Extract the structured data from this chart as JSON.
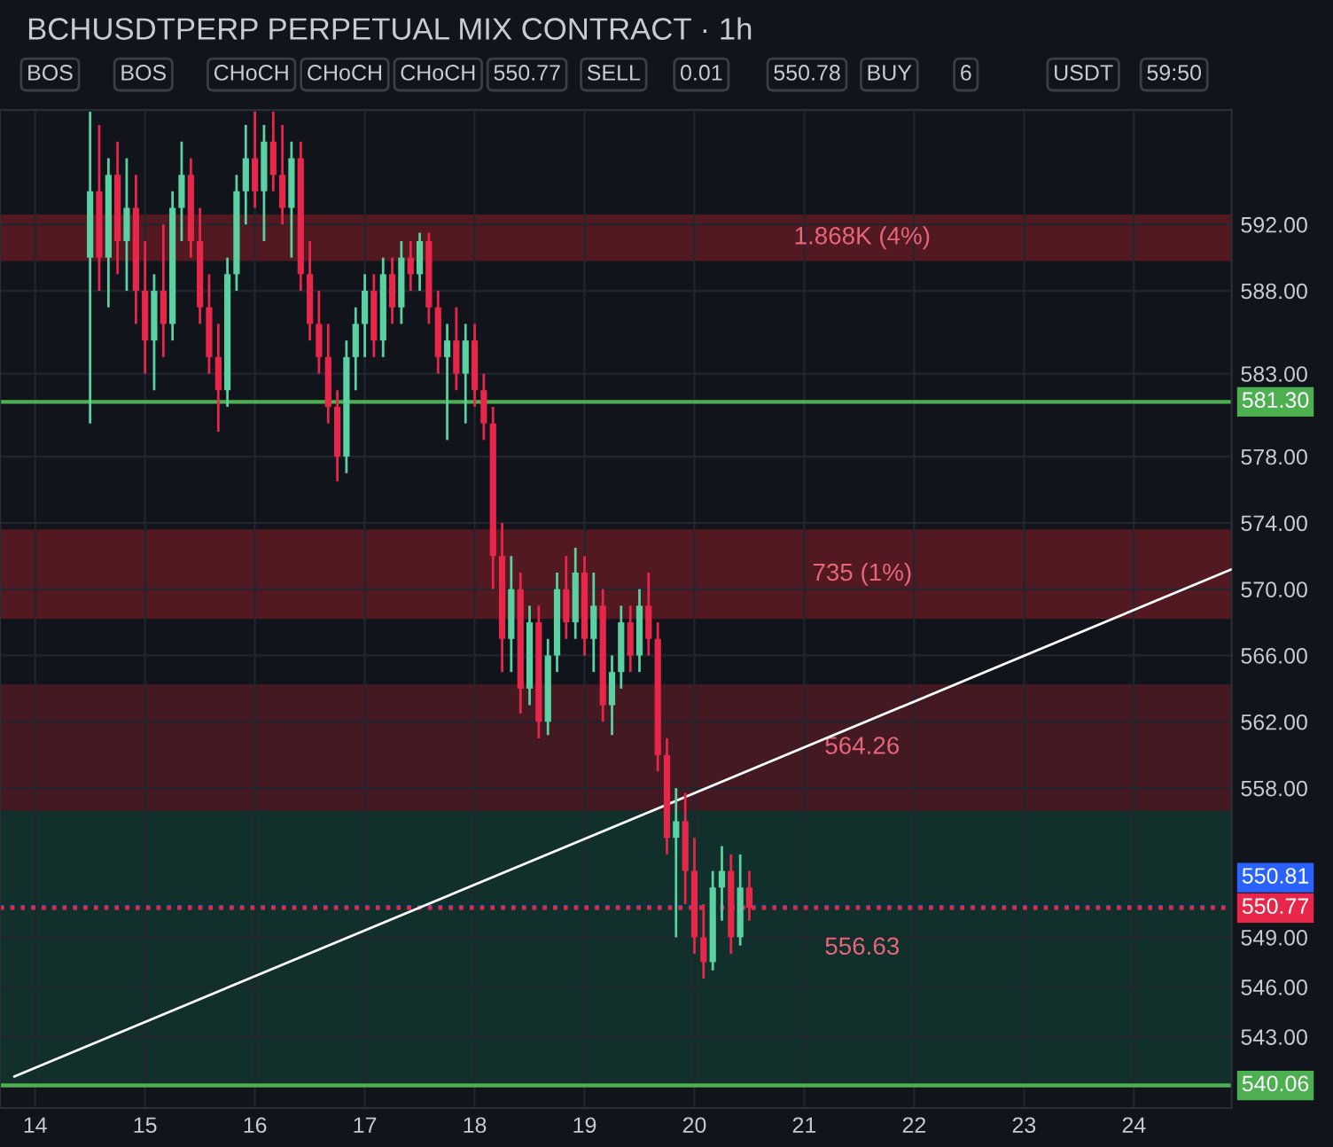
{
  "chart_data": {
    "type": "candlestick",
    "title": "BCHUSDTPERP PERPETUAL MIX CONTRACT · 1h",
    "x": [
      14.5,
      14.583,
      14.667,
      14.75,
      14.833,
      14.917,
      15.0,
      15.083,
      15.167,
      15.25,
      15.333,
      15.417,
      15.5,
      15.583,
      15.667,
      15.75,
      15.833,
      15.917,
      16.0,
      16.083,
      16.167,
      16.25,
      16.333,
      16.417,
      16.5,
      16.583,
      16.667,
      16.75,
      16.833,
      16.917,
      17.0,
      17.083,
      17.167,
      17.25,
      17.333,
      17.417,
      17.5,
      17.583,
      17.667,
      17.75,
      17.833,
      17.917,
      18.0,
      18.083,
      18.167,
      18.25,
      18.333,
      18.417,
      18.5,
      18.583,
      18.667,
      18.75,
      18.833,
      18.917,
      19.0,
      19.083,
      19.167,
      19.25,
      19.333,
      19.417,
      19.5,
      19.583,
      19.667,
      19.75,
      19.833,
      19.917,
      20.0,
      20.083,
      20.167,
      20.25,
      20.333,
      20.417,
      20.5
    ],
    "ohlc": [
      [
        590,
        598.8,
        580,
        594
      ],
      [
        594,
        598,
        588,
        590
      ],
      [
        590,
        596,
        587,
        595
      ],
      [
        595,
        597,
        589,
        591
      ],
      [
        591,
        596,
        588,
        593
      ],
      [
        593,
        595,
        586,
        588
      ],
      [
        588,
        591,
        583,
        585
      ],
      [
        585,
        589,
        582,
        588
      ],
      [
        588,
        592,
        584,
        586
      ],
      [
        586,
        594,
        585,
        593
      ],
      [
        593,
        597,
        591,
        595
      ],
      [
        595,
        596,
        590,
        591
      ],
      [
        591,
        593,
        586,
        587
      ],
      [
        587,
        589,
        583,
        584
      ],
      [
        584,
        586,
        579.5,
        582
      ],
      [
        582,
        590,
        581,
        589
      ],
      [
        589,
        595,
        588,
        594
      ],
      [
        594,
        598,
        592,
        596
      ],
      [
        596,
        598.8,
        593,
        594
      ],
      [
        594,
        598,
        591,
        597
      ],
      [
        597,
        598.8,
        594,
        595
      ],
      [
        595,
        598,
        592,
        593
      ],
      [
        593,
        597,
        590,
        596
      ],
      [
        596,
        597,
        588,
        589
      ],
      [
        589,
        591,
        585,
        586
      ],
      [
        586,
        588,
        583,
        584
      ],
      [
        584,
        586,
        580,
        581
      ],
      [
        581,
        582,
        576.5,
        578
      ],
      [
        578,
        585,
        577,
        584
      ],
      [
        584,
        587,
        582,
        586
      ],
      [
        586,
        589,
        584,
        588
      ],
      [
        588,
        589,
        584,
        585
      ],
      [
        585,
        590,
        584,
        589
      ],
      [
        589,
        590,
        586,
        587
      ],
      [
        587,
        591,
        586,
        590
      ],
      [
        590,
        591,
        588,
        589
      ],
      [
        589,
        591.5,
        588,
        591
      ],
      [
        591,
        591.5,
        586,
        587
      ],
      [
        587,
        588,
        583,
        584
      ],
      [
        584,
        586,
        579,
        585
      ],
      [
        585,
        587,
        582,
        583
      ],
      [
        583,
        586,
        580,
        585
      ],
      [
        585,
        586,
        581,
        582
      ],
      [
        582,
        583,
        579,
        580
      ],
      [
        580,
        581,
        570,
        572
      ],
      [
        572,
        574,
        565,
        567
      ],
      [
        567,
        572,
        565,
        570
      ],
      [
        570,
        571,
        562.5,
        564
      ],
      [
        564,
        569,
        563,
        568
      ],
      [
        568,
        569,
        561,
        562
      ],
      [
        562,
        567,
        561.2,
        566
      ],
      [
        566,
        571,
        565,
        570
      ],
      [
        570,
        572,
        567,
        568
      ],
      [
        568,
        572.5,
        567,
        571
      ],
      [
        571,
        572,
        566,
        567
      ],
      [
        567,
        571,
        565,
        569
      ],
      [
        569,
        570,
        562,
        563
      ],
      [
        563,
        566,
        561.2,
        565
      ],
      [
        565,
        569,
        564,
        568
      ],
      [
        568,
        569,
        565,
        566
      ],
      [
        566,
        570,
        565,
        569
      ],
      [
        569,
        571,
        566,
        567
      ],
      [
        567,
        568,
        559,
        560
      ],
      [
        560,
        561,
        554,
        555
      ],
      [
        555,
        558,
        549,
        556
      ],
      [
        556,
        557.7,
        551,
        553
      ],
      [
        553,
        555,
        548,
        549
      ],
      [
        549,
        551,
        546.5,
        547.5
      ],
      [
        547.5,
        553,
        547,
        552
      ],
      [
        552,
        554.5,
        550,
        553
      ],
      [
        553,
        554,
        548,
        549
      ],
      [
        549,
        554,
        548.5,
        552
      ],
      [
        552,
        553,
        550,
        550.77
      ]
    ],
    "colors": [
      "#5ad1a0",
      "#e8264a",
      "#5ad1a0",
      "#e8264a",
      "#5ad1a0",
      "#e8264a",
      "#e8264a",
      "#5ad1a0",
      "#e8264a",
      "#5ad1a0",
      "#5ad1a0",
      "#e8264a",
      "#e8264a",
      "#e8264a",
      "#e8264a",
      "#5ad1a0",
      "#5ad1a0",
      "#5ad1a0",
      "#e8264a",
      "#5ad1a0",
      "#e8264a",
      "#e8264a",
      "#5ad1a0",
      "#e8264a",
      "#e8264a",
      "#e8264a",
      "#e8264a",
      "#e8264a",
      "#5ad1a0",
      "#5ad1a0",
      "#5ad1a0",
      "#e8264a",
      "#5ad1a0",
      "#e8264a",
      "#5ad1a0",
      "#e8264a",
      "#5ad1a0",
      "#e8264a",
      "#e8264a",
      "#5ad1a0",
      "#e8264a",
      "#5ad1a0",
      "#e8264a",
      "#e8264a",
      "#e8264a",
      "#e8264a",
      "#5ad1a0",
      "#e8264a",
      "#5ad1a0",
      "#e8264a",
      "#5ad1a0",
      "#5ad1a0",
      "#e8264a",
      "#5ad1a0",
      "#e8264a",
      "#5ad1a0",
      "#e8264a",
      "#5ad1a0",
      "#5ad1a0",
      "#e8264a",
      "#5ad1a0",
      "#e8264a",
      "#e8264a",
      "#e8264a",
      "#5ad1a0",
      "#e8264a",
      "#e8264a",
      "#e8264a",
      "#5ad1a0",
      "#5ad1a0",
      "#e8264a",
      "#5ad1a0",
      "#e8264a"
    ],
    "series": [
      {
        "type": "line",
        "x": [
          13.81,
          24.89
        ],
        "values": [
          540.6,
          571.2
        ],
        "color": "#ffffff"
      }
    ],
    "xlim": [
      13.68,
      24.89
    ],
    "xticks": [
      14,
      15,
      16,
      17,
      18,
      19,
      20,
      21,
      22,
      23,
      24
    ],
    "ylim": [
      538.7,
      598.9
    ],
    "yticks": [
      {
        "value": 543,
        "label": "543.00"
      },
      {
        "value": 546,
        "label": "546.00"
      },
      {
        "value": 549,
        "label": "549.00"
      },
      {
        "value": 558,
        "label": "558.00"
      },
      {
        "value": 562,
        "label": "562.00"
      },
      {
        "value": 566,
        "label": "566.00"
      },
      {
        "value": 570,
        "label": "570.00"
      },
      {
        "value": 574,
        "label": "574.00"
      },
      {
        "value": 578,
        "label": "578.00"
      },
      {
        "value": 583,
        "label": "583.00"
      },
      {
        "value": 588,
        "label": "588.00"
      },
      {
        "value": 592,
        "label": "592.00"
      }
    ],
    "grid": true,
    "ref_lines": [
      {
        "axis": "y",
        "value": 581.3,
        "label": "581.30",
        "color": "#4caf50",
        "line_style": "solid"
      },
      {
        "axis": "y",
        "value": 540.06,
        "label": "540.06",
        "color": "#4caf50",
        "line_style": "solid"
      },
      {
        "axis": "y",
        "value": 550.77,
        "label": "550.77",
        "color": "#e8264a",
        "line_style": "dotted"
      },
      {
        "axis": "y",
        "value": 550.81,
        "label": "550.81",
        "color": "#2962ff",
        "line_style": "dotted"
      }
    ],
    "bands": [
      {
        "axis": "y",
        "from": 589.8,
        "to": 592.6,
        "label": "1.868K (4%)",
        "color": "#5a1a22"
      },
      {
        "axis": "y",
        "from": 568.2,
        "to": 573.6,
        "label": "735 (1%)",
        "color": "#5a1a22"
      },
      {
        "axis": "y",
        "from": 556.63,
        "to": 564.26,
        "label": "564.26",
        "color": "#4a1a22"
      },
      {
        "axis": "y",
        "from": 540.06,
        "to": 556.63,
        "label": "556.63",
        "color": "#12332e"
      }
    ],
    "annotations": [
      "BOS",
      "BOS",
      "CHoCH",
      "CHoCH",
      "CHoCH",
      "550.77",
      "SELL",
      "0.01",
      "550.78",
      "BUY",
      "6",
      "USDT",
      "59:50"
    ]
  }
}
